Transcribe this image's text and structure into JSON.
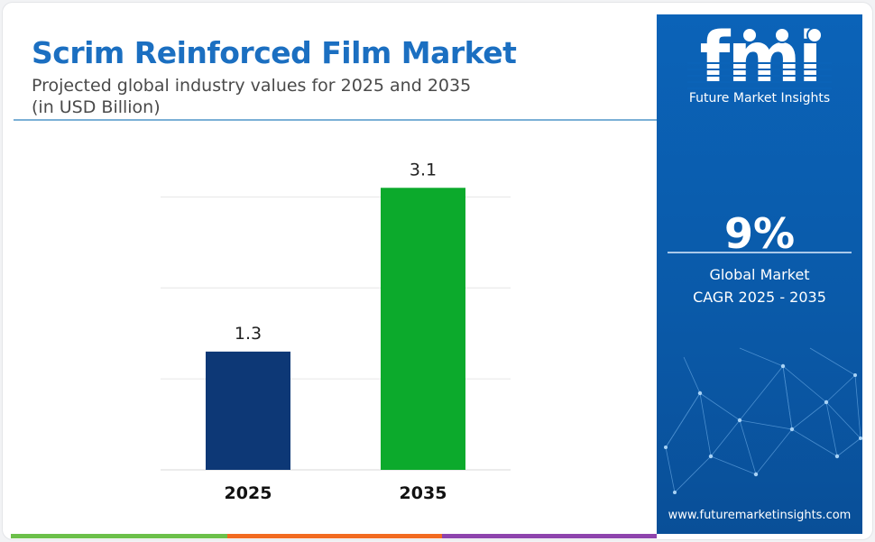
{
  "header": {
    "title": "Scrim Reinforced Film Market",
    "subtitle_line1": "Projected global industry values for 2025 and 2035",
    "subtitle_line2": "(in USD Billion)"
  },
  "chart_data": {
    "type": "bar",
    "categories": [
      "2025",
      "2035"
    ],
    "values": [
      1.3,
      3.1
    ],
    "value_labels": [
      "1.3",
      "3.1"
    ],
    "colors": [
      "#0d3876",
      "#0caa2c"
    ],
    "ylim": [
      0,
      3.4
    ],
    "grid": true,
    "legend": "none"
  },
  "side_panel": {
    "logo": "fmi",
    "logo_caption": "Future Market Insights",
    "cagr_value": "9%",
    "cagr_label_line1": "Global Market",
    "cagr_label_line2": "CAGR 2025 - 2035",
    "website": "www.futuremarketinsights.com"
  },
  "colors": {
    "title": "#1b6fc1",
    "panel": "#0b63b8",
    "bottom_bar": [
      "#6cc04a",
      "#f26b21",
      "#8e44ad",
      "#1b6fc1"
    ]
  }
}
